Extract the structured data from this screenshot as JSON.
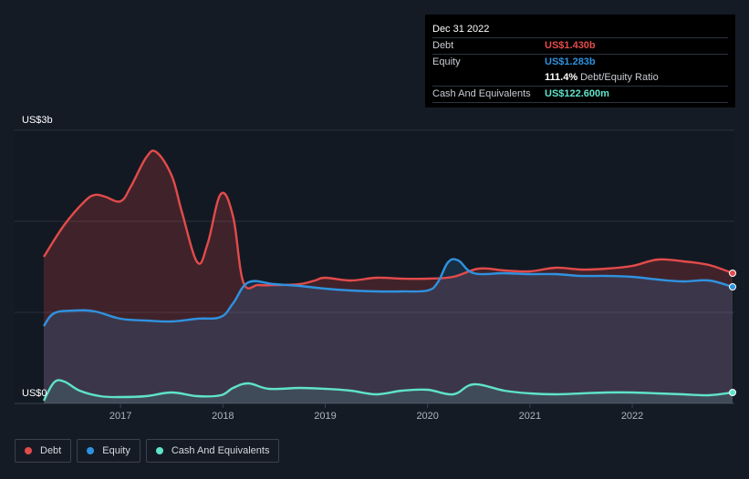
{
  "tooltip": {
    "date": "Dec 31 2022",
    "rows": [
      {
        "label": "Debt",
        "value": "US$1.430b",
        "color": "#e34b4b"
      },
      {
        "label": "Equity",
        "value": "US$1.283b",
        "color": "#2f92e0"
      },
      {
        "label": "",
        "value": "111.4%",
        "suffix": "Debt/Equity Ratio",
        "color": "#ffffff"
      },
      {
        "label": "Cash And Equivalents",
        "value": "US$122.600m",
        "color": "#5fe3c9"
      }
    ]
  },
  "legend": [
    {
      "label": "Debt",
      "color": "#e34b4b"
    },
    {
      "label": "Equity",
      "color": "#2f92e0"
    },
    {
      "label": "Cash And Equivalents",
      "color": "#5fe3c9"
    }
  ],
  "chart_data": {
    "type": "area",
    "y_top_label": "US$3b",
    "y_bottom_label": "US$0",
    "ylim": [
      0,
      3.0
    ],
    "xlim": [
      2016.25,
      2022.98
    ],
    "x_ticks": [
      "2017",
      "2018",
      "2019",
      "2020",
      "2021",
      "2022"
    ],
    "x_tick_values": [
      2017,
      2018,
      2019,
      2020,
      2021,
      2022
    ],
    "grid": true,
    "legend_position": "bottom-left",
    "series": [
      {
        "name": "Debt",
        "color": "#e34b4b",
        "x": [
          2016.25,
          2016.45,
          2016.65,
          2016.75,
          2016.85,
          2017.0,
          2017.1,
          2017.25,
          2017.35,
          2017.5,
          2017.6,
          2017.75,
          2017.85,
          2017.98,
          2018.1,
          2018.2,
          2018.35,
          2018.55,
          2018.75,
          2018.9,
          2019.0,
          2019.25,
          2019.5,
          2019.75,
          2020.0,
          2020.25,
          2020.5,
          2020.75,
          2021.0,
          2021.25,
          2021.5,
          2021.75,
          2022.0,
          2022.25,
          2022.5,
          2022.75,
          2022.98
        ],
        "y": [
          1.61,
          1.96,
          2.22,
          2.29,
          2.27,
          2.22,
          2.38,
          2.7,
          2.76,
          2.5,
          2.1,
          1.55,
          1.75,
          2.3,
          2.05,
          1.33,
          1.3,
          1.3,
          1.31,
          1.35,
          1.38,
          1.35,
          1.38,
          1.37,
          1.37,
          1.39,
          1.48,
          1.46,
          1.45,
          1.49,
          1.47,
          1.48,
          1.51,
          1.58,
          1.56,
          1.52,
          1.43
        ]
      },
      {
        "name": "Equity",
        "color": "#2f92e0",
        "x": [
          2016.25,
          2016.35,
          2016.55,
          2016.75,
          2017.0,
          2017.25,
          2017.5,
          2017.75,
          2017.98,
          2018.1,
          2018.25,
          2018.5,
          2018.75,
          2019.0,
          2019.25,
          2019.5,
          2019.75,
          2020.0,
          2020.1,
          2020.2,
          2020.3,
          2020.45,
          2020.75,
          2021.0,
          2021.25,
          2021.5,
          2021.75,
          2022.0,
          2022.25,
          2022.5,
          2022.75,
          2022.98
        ],
        "y": [
          0.85,
          0.99,
          1.02,
          1.01,
          0.93,
          0.91,
          0.9,
          0.93,
          0.95,
          1.1,
          1.33,
          1.31,
          1.29,
          1.26,
          1.24,
          1.23,
          1.23,
          1.24,
          1.33,
          1.55,
          1.57,
          1.43,
          1.43,
          1.42,
          1.42,
          1.4,
          1.4,
          1.39,
          1.36,
          1.34,
          1.35,
          1.28
        ]
      },
      {
        "name": "Cash And Equivalents",
        "color": "#5fe3c9",
        "x": [
          2016.25,
          2016.35,
          2016.45,
          2016.6,
          2016.8,
          2017.0,
          2017.25,
          2017.5,
          2017.75,
          2017.98,
          2018.1,
          2018.25,
          2018.45,
          2018.75,
          2019.0,
          2019.25,
          2019.5,
          2019.75,
          2020.0,
          2020.25,
          2020.45,
          2020.75,
          2021.0,
          2021.25,
          2021.5,
          2021.75,
          2022.0,
          2022.25,
          2022.5,
          2022.75,
          2022.98
        ],
        "y": [
          0.03,
          0.23,
          0.24,
          0.14,
          0.08,
          0.07,
          0.08,
          0.12,
          0.08,
          0.09,
          0.17,
          0.22,
          0.16,
          0.17,
          0.16,
          0.14,
          0.1,
          0.14,
          0.15,
          0.1,
          0.21,
          0.14,
          0.11,
          0.1,
          0.11,
          0.12,
          0.12,
          0.11,
          0.1,
          0.09,
          0.12
        ]
      }
    ]
  }
}
